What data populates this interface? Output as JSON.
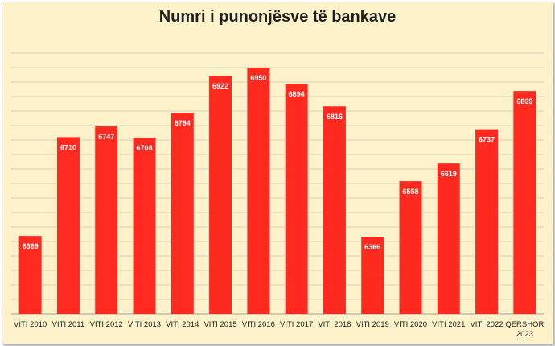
{
  "chart_data": {
    "type": "bar",
    "title": "Numri i punonjësve të bankave",
    "xlabel": "",
    "ylabel": "",
    "categories": [
      "VITI 2010",
      "VITI 2011",
      "VITI 2012",
      "VITI 2013",
      "VITI 2014",
      "VITI 2015",
      "VITI 2016",
      "VITI 2017",
      "VITI 2018",
      "VITI 2019",
      "VITI 2020",
      "VITI 2021",
      "VITI 2022",
      "QERSHOR 2023"
    ],
    "values": [
      6369,
      6710,
      6747,
      6708,
      6794,
      6922,
      6950,
      6894,
      6816,
      6366,
      6558,
      6619,
      6737,
      6869
    ],
    "ylim": [
      6100,
      7050
    ],
    "grid": true,
    "data_labels": true,
    "colors": {
      "bar": "#ff2a1f",
      "background": "#fdf2c9",
      "grid": "#d6d0bd",
      "axis": "#a0a0a0"
    }
  }
}
